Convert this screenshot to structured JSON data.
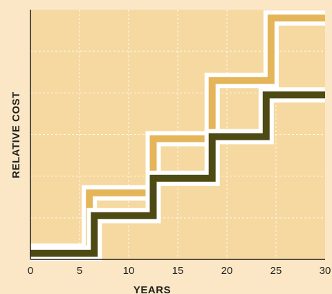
{
  "chart_data": {
    "type": "line",
    "title": "",
    "xlabel": "YEARS",
    "ylabel": "RELATIVE COST",
    "xlim": [
      0,
      30
    ],
    "ylim": [
      0,
      6
    ],
    "xticks": [
      "0",
      "5",
      "10",
      "15",
      "20",
      "25",
      "30"
    ],
    "y_tick_labels": false,
    "grid": true,
    "colors": {
      "background": "#fbe7c6",
      "plot_area": "#f6d9a0",
      "grid": "#ffffff",
      "outline": "#ffffff"
    },
    "series": [
      {
        "color": "#e5b55a",
        "step": true,
        "x": [
          0,
          6,
          6,
          12.5,
          12.5,
          18.5,
          18.5,
          24.5,
          24.5,
          30
        ],
        "y": [
          0.2,
          0.2,
          1.6,
          1.6,
          2.9,
          2.9,
          4.3,
          4.3,
          5.8,
          5.8
        ]
      },
      {
        "color": "#4d4a14",
        "step": true,
        "x": [
          0,
          6.5,
          6.5,
          12.5,
          12.5,
          18.5,
          18.5,
          24,
          24,
          30
        ],
        "y": [
          0.15,
          0.15,
          1.05,
          1.05,
          1.95,
          1.95,
          2.95,
          2.95,
          3.95,
          3.95
        ]
      }
    ]
  }
}
